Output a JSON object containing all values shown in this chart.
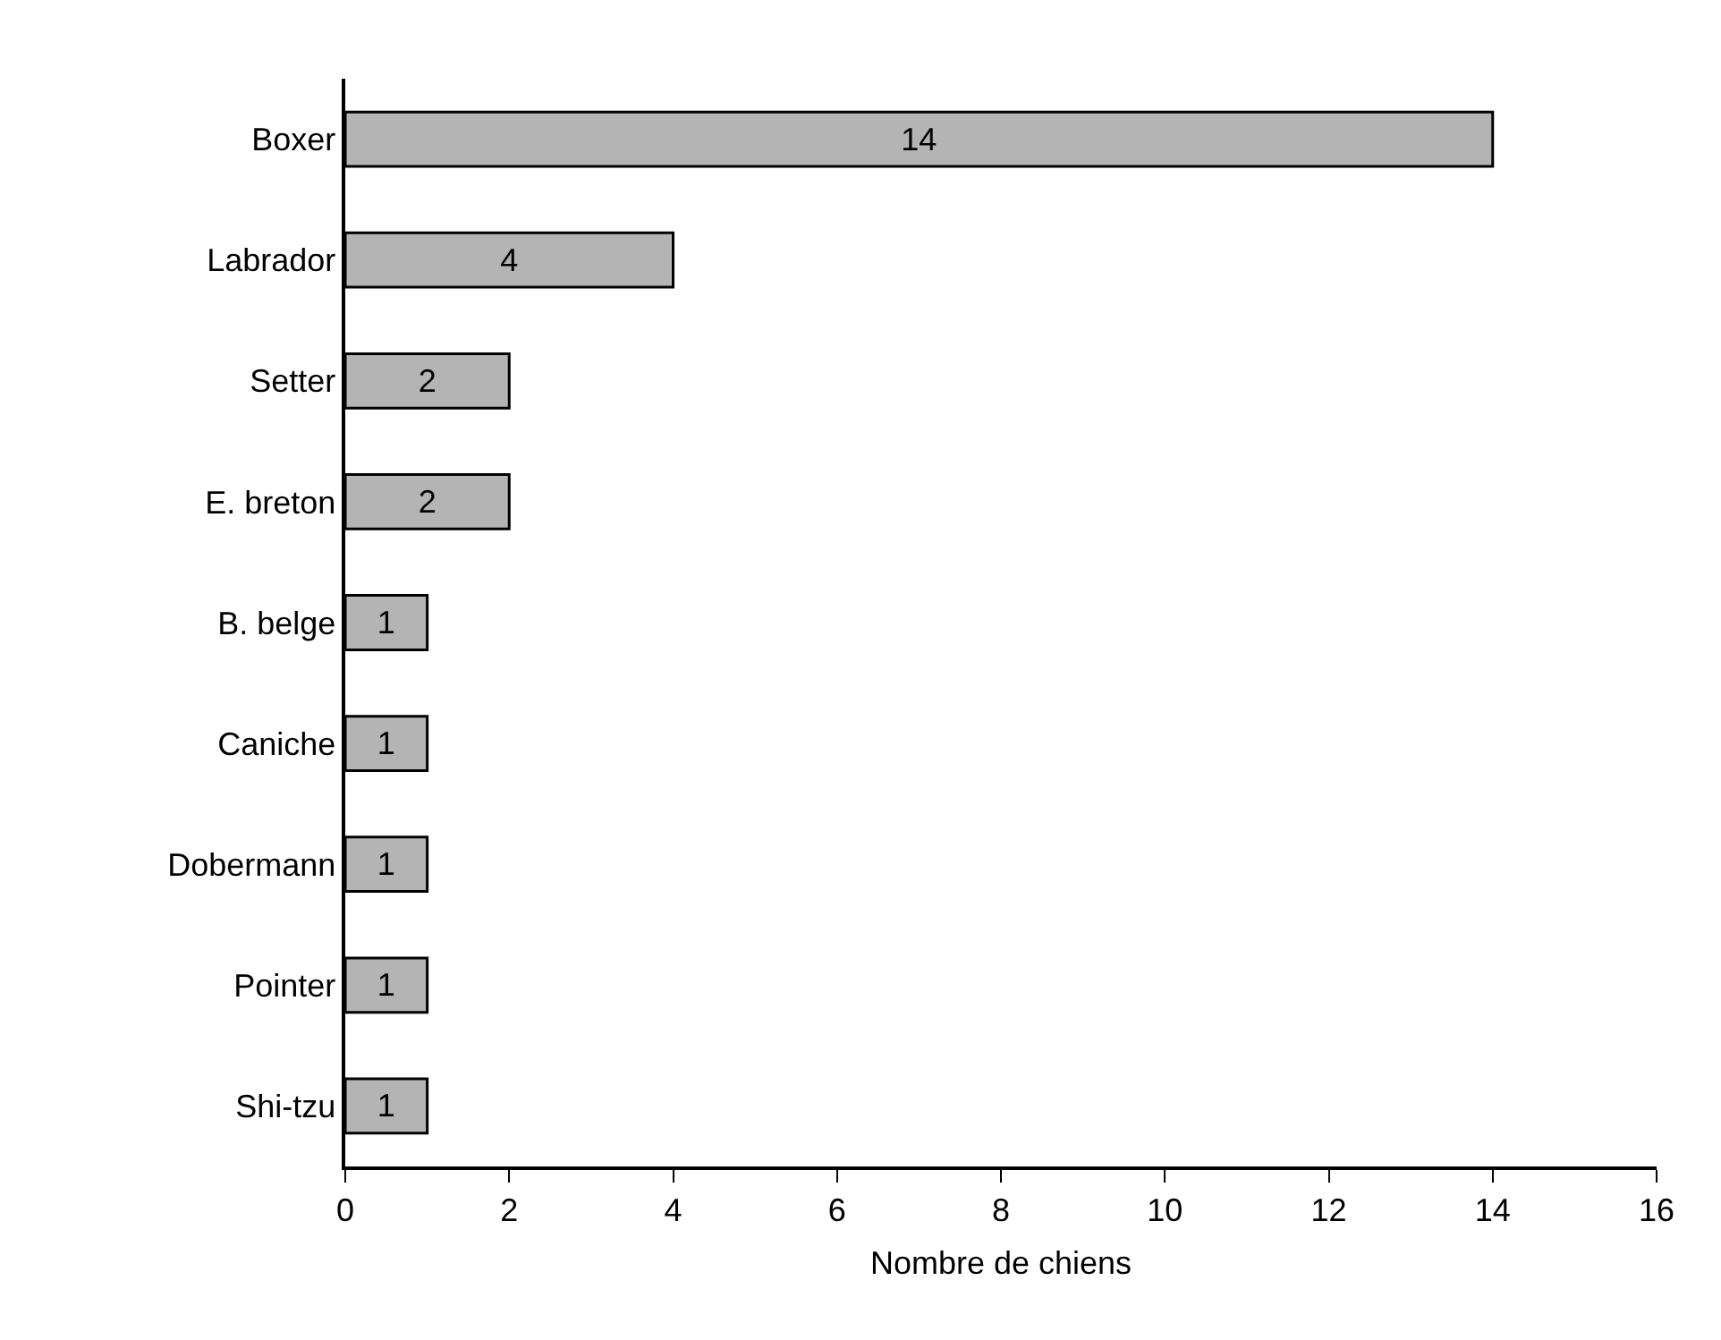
{
  "chart_data": {
    "type": "bar",
    "orientation": "horizontal",
    "xlabel": "Nombre de chiens",
    "categories": [
      "Boxer",
      "Labrador",
      "Setter",
      "E. breton",
      "B. belge",
      "Caniche",
      "Dobermann",
      "Pointer",
      "Shi-tzu"
    ],
    "values": [
      14,
      4,
      2,
      2,
      1,
      1,
      1,
      1,
      1
    ],
    "color": "#b4b4b4",
    "xlim": [
      0,
      16
    ],
    "xticks": [
      0,
      2,
      4,
      6,
      8,
      10,
      12,
      14,
      16
    ],
    "grid": false,
    "legend": false,
    "data_labels": true
  }
}
